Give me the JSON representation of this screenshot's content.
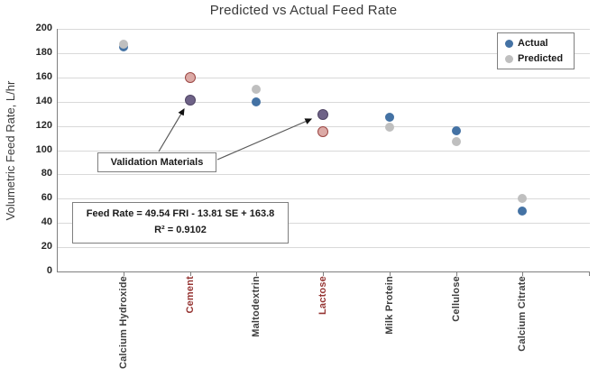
{
  "chart_data": {
    "type": "scatter",
    "title": "Predicted vs Actual Feed Rate",
    "ylabel": "Volumetric Feed Rate, L/hr",
    "ylim": [
      0,
      200
    ],
    "yticks": [
      0,
      20,
      40,
      60,
      80,
      100,
      120,
      140,
      160,
      180,
      200
    ],
    "grid": true,
    "categories": [
      "Calcium Hydroxide",
      "Cement",
      "Maltodextrin",
      "Lactose",
      "Milk Protein",
      "Cellulose",
      "Calcium Citrate"
    ],
    "series": [
      {
        "name": "Actual",
        "values": [
          185,
          141,
          140,
          129,
          127,
          116,
          50
        ]
      },
      {
        "name": "Predicted",
        "values": [
          187,
          160,
          150,
          115,
          119,
          107,
          60
        ]
      }
    ],
    "validation_indices": [
      1,
      3
    ],
    "legend": {
      "position": "top-right",
      "entries": [
        "Actual",
        "Predicted"
      ]
    },
    "annotations": {
      "validation_label": "Validation Materials",
      "equation_line1": "Feed Rate = 49.54 FRI - 13.81 SE + 163.8",
      "equation_line2": "R² = 0.9102"
    },
    "colors": {
      "actual": "#4472a4",
      "predicted": "#bfbfbf",
      "validation_actual_fill": "#6e6287",
      "validation_actual_border": "#504565",
      "validation_predicted_fill": "#dcaaa6",
      "validation_predicted_border": "#9c4744",
      "gridline": "#d9d9d9",
      "axis": "#808080",
      "text": "#3f3f3f",
      "validation_category_label": "#963634"
    }
  }
}
